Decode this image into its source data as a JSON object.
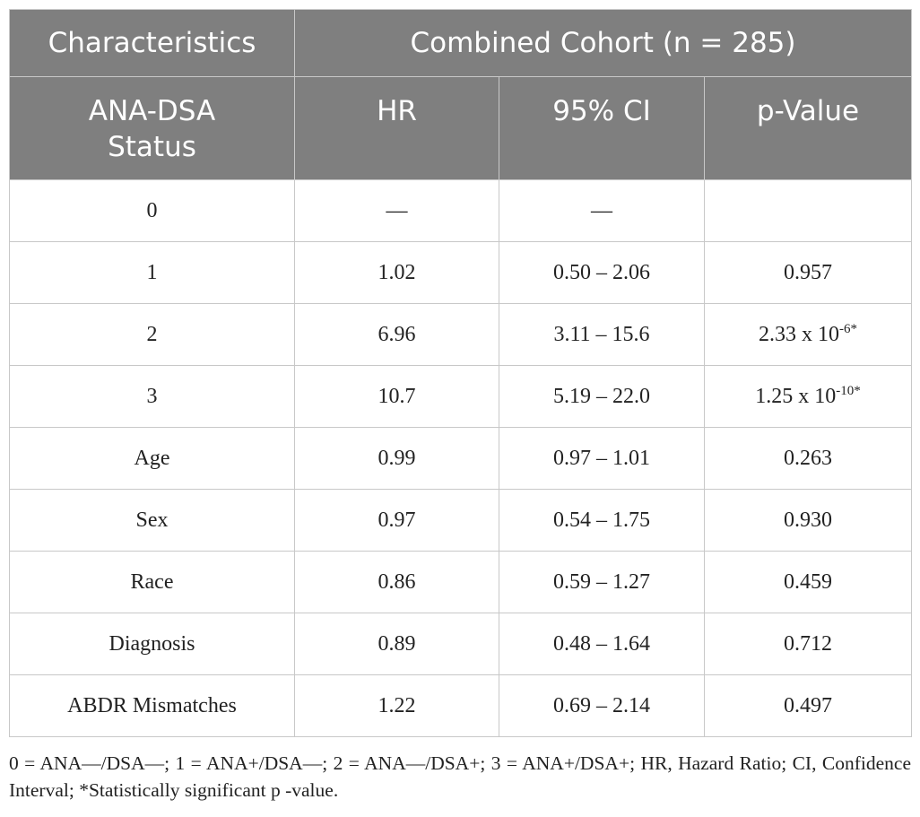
{
  "table": {
    "header": {
      "row1": [
        "Characteristics",
        "Combined Cohort (n = 285)"
      ],
      "row2": [
        "ANA-DSA Status",
        "HR",
        "95% CI",
        "p-Value"
      ]
    },
    "rows": [
      [
        "0",
        "—",
        "—"
      ],
      [
        "1",
        "1.02",
        "0.50 – 2.06",
        "0.957"
      ],
      [
        "2",
        "6.96",
        "3.11 – 15.6",
        {
          "mantissa": "2.33 x 10",
          "exponent": "-6",
          "mark": "*"
        }
      ],
      [
        "3",
        "10.7",
        "5.19 – 22.0",
        {
          "mantissa": "1.25 x 10",
          "exponent": "-10",
          "mark": "*"
        }
      ],
      [
        "Age",
        "0.99",
        "0.97 – 1.01",
        "0.263"
      ],
      [
        "Sex",
        "0.97",
        "0.54 – 1.75",
        "0.930"
      ],
      [
        "Race",
        "0.86",
        "0.59 – 1.27",
        "0.459"
      ],
      [
        "Diagnosis",
        "0.89",
        "0.48 – 1.64",
        "0.712"
      ],
      [
        "ABDR Mismatches",
        "1.22",
        "0.69 – 2.14",
        "0.497"
      ]
    ],
    "footnote": "0 = ANA—/DSA—; 1 = ANA+/DSA—; 2 = ANA—/DSA+; 3 = ANA+/DSA+; HR, Hazard Ratio; CI, Confidence Interval; *Statistically significant p -value."
  }
}
